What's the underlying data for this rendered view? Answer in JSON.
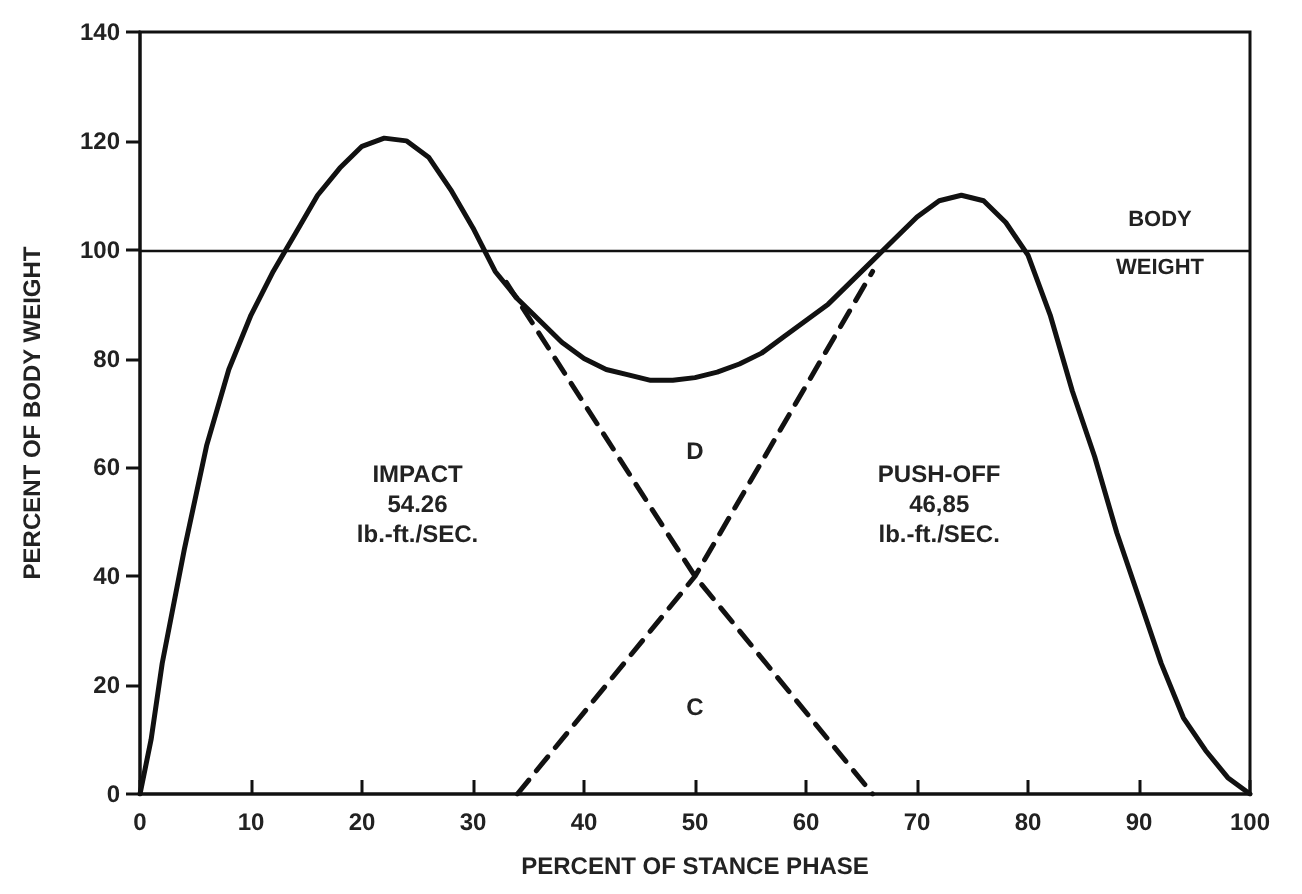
{
  "chart_data": {
    "type": "line",
    "xlabel": "PERCENT OF STANCE PHASE",
    "ylabel": "PERCENT OF BODY WEIGHT",
    "xlim": [
      0,
      100
    ],
    "xticks": [
      0,
      10,
      20,
      30,
      40,
      50,
      60,
      70,
      80,
      90,
      100
    ],
    "ylim": [
      0,
      140
    ],
    "yticks": [
      0,
      20,
      40,
      60,
      80,
      100,
      120,
      140
    ],
    "grid": false,
    "marker": "none",
    "series": [
      {
        "color": "#111111",
        "line_style": "solid",
        "x": [
          0,
          1,
          2,
          4,
          6,
          8,
          10,
          12,
          14,
          16,
          18,
          20,
          22,
          24,
          26,
          28,
          30,
          32,
          34,
          36,
          38,
          40,
          42,
          44,
          46,
          48,
          50,
          52,
          54,
          56,
          58,
          60,
          62,
          64,
          66,
          68,
          70,
          72,
          74,
          76,
          78,
          80,
          82,
          84,
          86,
          88,
          90,
          92,
          94,
          96,
          98,
          100
        ],
        "values": [
          0,
          10,
          24,
          45,
          64,
          78,
          88,
          96,
          103,
          110,
          115,
          119,
          120.5,
          120,
          117,
          111,
          104,
          96,
          91,
          87,
          83,
          80,
          78,
          77,
          76,
          76,
          76.5,
          77.5,
          79,
          81,
          84,
          87,
          90,
          94,
          98,
          102,
          106,
          109,
          110,
          109,
          105,
          99,
          88,
          74,
          62,
          48,
          36,
          24,
          14,
          8,
          3,
          0
        ]
      },
      {
        "color": "#111111",
        "line_style": "dashed",
        "x": [
          33,
          50,
          66
        ],
        "values": [
          94,
          40,
          0
        ]
      },
      {
        "color": "#111111",
        "line_style": "dashed",
        "x": [
          34,
          50,
          66
        ],
        "values": [
          0,
          40,
          96
        ]
      }
    ],
    "ref_lines": [
      {
        "axis": "y",
        "value": 100,
        "label": "BODY WEIGHT",
        "color": "#111111"
      }
    ],
    "annotations": [
      "IMPACT\n54.26\nlb.-ft./SEC.",
      "PUSH-OFF\n46,85\nlb.-ft./SEC.",
      "D",
      "C"
    ]
  }
}
